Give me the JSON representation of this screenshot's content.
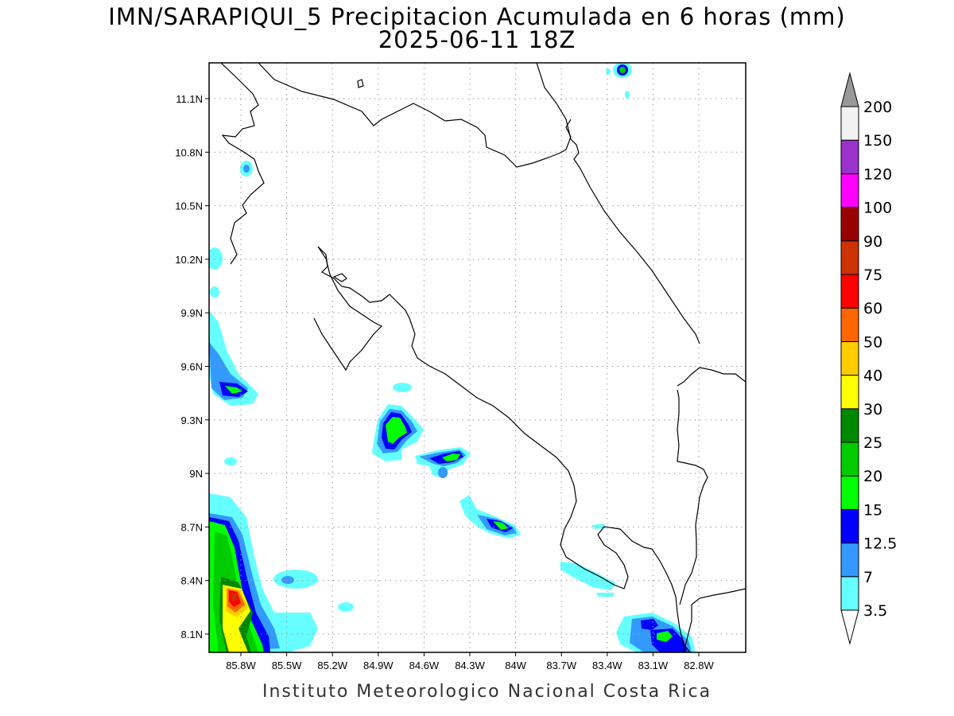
{
  "header": {
    "title": "IMN/SARAPIQUI_5 Precipitacion Acumulada en 6 horas (mm)",
    "subtitle": "2025-06-11 18Z"
  },
  "footer": {
    "credit": "Instituto Meteorologico Nacional Costa Rica"
  },
  "map": {
    "lat_ticks": [
      "11.1N",
      "10.8N",
      "10.5N",
      "10.2N",
      "9.9N",
      "9.6N",
      "9.3N",
      "9N",
      "8.7N",
      "8.4N",
      "8.1N"
    ],
    "lon_ticks": [
      "85.8W",
      "85.5W",
      "85.2W",
      "84.9W",
      "84.6W",
      "84.3W",
      "84W",
      "83.7W",
      "83.4W",
      "83.1W",
      "82.8W"
    ],
    "grid": "dotted",
    "variable": "6-hour accumulated precipitation (mm)"
  },
  "colorbar": {
    "labels": [
      "3.5",
      "7",
      "12.5",
      "15",
      "20",
      "25",
      "30",
      "40",
      "50",
      "60",
      "75",
      "90",
      "100",
      "120",
      "150",
      "200"
    ],
    "colors": [
      "#66ffff",
      "#3399ff",
      "#0000ff",
      "#00ff00",
      "#00cc00",
      "#008800",
      "#ffff00",
      "#ffcc00",
      "#ff6600",
      "#ff0000",
      "#cc3300",
      "#990000",
      "#ff00ff",
      "#9933cc",
      "#f2f2f2",
      "#999999"
    ],
    "under_color": "#ffffff",
    "over_color": "#999999"
  }
}
